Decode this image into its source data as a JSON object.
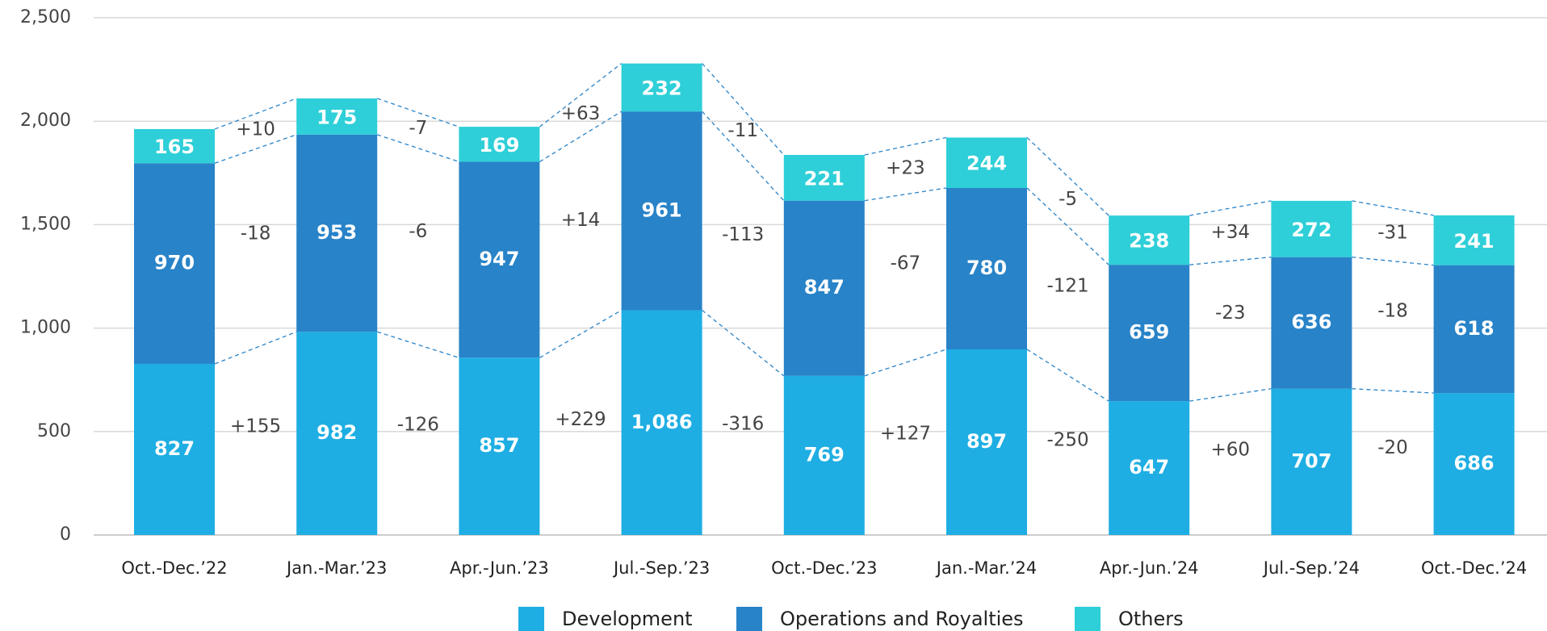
{
  "chart_data": {
    "type": "stacked_bar",
    "categories": [
      "Oct.-Dec.’22",
      "Jan.-Mar.’23",
      "Apr.-Jun.’23",
      "Jul.-Sep.’23",
      "Oct.-Dec.’23",
      "Jan.-Mar.’24",
      "Apr.-Jun.’24",
      "Jul.-Sep.’24",
      "Oct.-Dec.’24"
    ],
    "series": [
      {
        "name": "Development",
        "color": "#1eaee3",
        "values": [
          827,
          982,
          857,
          1086,
          769,
          897,
          647,
          707,
          686
        ],
        "value_labels": [
          "827",
          "982",
          "857",
          "1,086",
          "769",
          "897",
          "647",
          "707",
          "686"
        ],
        "change_labels": [
          "+155",
          "-126",
          "+229",
          "-316",
          "+127",
          "-250",
          "+60",
          "-20"
        ]
      },
      {
        "name": "Operations and Royalties",
        "color": "#2883c8",
        "values": [
          970,
          953,
          947,
          961,
          847,
          780,
          659,
          636,
          618
        ],
        "change_labels": [
          "-18",
          "-6",
          "+14",
          "-113",
          "-67",
          "-121",
          "-23",
          "-18"
        ]
      },
      {
        "name": "Others",
        "color": "#2ecfd8",
        "values": [
          165,
          175,
          169,
          232,
          221,
          244,
          238,
          272,
          241
        ],
        "change_labels": [
          "+10",
          "-7",
          "+63",
          "-11",
          "+23",
          "-5",
          "+34",
          "-31"
        ]
      }
    ],
    "ylim": [
      0,
      2500
    ],
    "yticks": [
      0,
      500,
      {
        "value": 1000,
        "label": "1,000"
      },
      {
        "value": 1500,
        "label": "1,500"
      },
      {
        "value": 2000,
        "label": "2,000"
      },
      {
        "value": 2500,
        "label": "2,500"
      }
    ],
    "grid": true,
    "legend": "bottom"
  }
}
